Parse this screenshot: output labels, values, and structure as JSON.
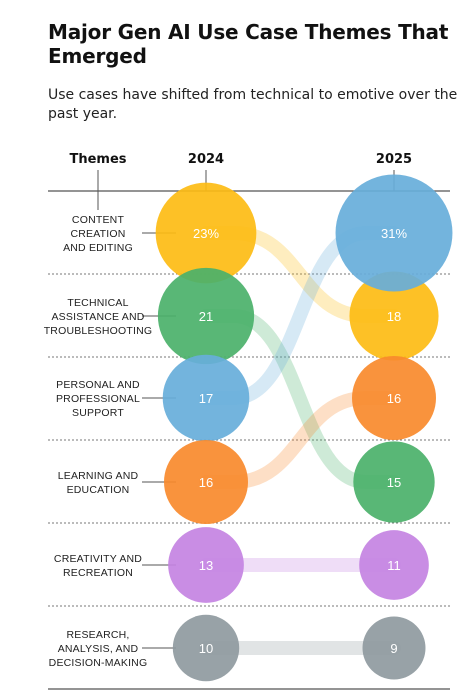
{
  "title": "Major Gen AI Use Case Themes That Emerged",
  "subtitle": "Use cases have shifted from technical to emotive over the past year.",
  "chart_data": {
    "type": "bump",
    "header_themes": "Themes",
    "years": [
      "2024",
      "2025"
    ],
    "themes": [
      {
        "label_lines": [
          "CONTENT",
          "CREATION",
          "AND EDITING"
        ],
        "color": "#FDBC13",
        "v2024": 23,
        "v2025": 18,
        "label2024": "23%",
        "label2025": "18",
        "rank2024": 1,
        "rank2025": 2
      },
      {
        "label_lines": [
          "TECHNICAL",
          "ASSISTANCE AND",
          "TROUBLESHOOTING"
        ],
        "color": "#4BB16A",
        "v2024": 21,
        "v2025": 15,
        "label2024": "21",
        "label2025": "15",
        "rank2024": 2,
        "rank2025": 4
      },
      {
        "label_lines": [
          "PERSONAL AND",
          "PROFESSIONAL",
          "SUPPORT"
        ],
        "color": "#67AEDA",
        "v2024": 17,
        "v2025": 31,
        "label2024": "17",
        "label2025": "31%",
        "rank2024": 3,
        "rank2025": 1
      },
      {
        "label_lines": [
          "LEARNING AND",
          "EDUCATION"
        ],
        "color": "#F88A2D",
        "v2024": 16,
        "v2025": 16,
        "label2024": "16",
        "label2025": "16",
        "rank2024": 4,
        "rank2025": 3
      },
      {
        "label_lines": [
          "CREATIVITY AND",
          "RECREATION"
        ],
        "color": "#C483E2",
        "v2024": 13,
        "v2025": 11,
        "label2024": "13",
        "label2025": "11",
        "rank2024": 5,
        "rank2025": 5
      },
      {
        "label_lines": [
          "RESEARCH,",
          "ANALYSIS, AND",
          "DECISION-MAKING"
        ],
        "color": "#8F9AA0",
        "v2024": 10,
        "v2025": 9,
        "label2024": "10",
        "label2025": "9",
        "rank2024": 6,
        "rank2025": 6
      }
    ]
  }
}
